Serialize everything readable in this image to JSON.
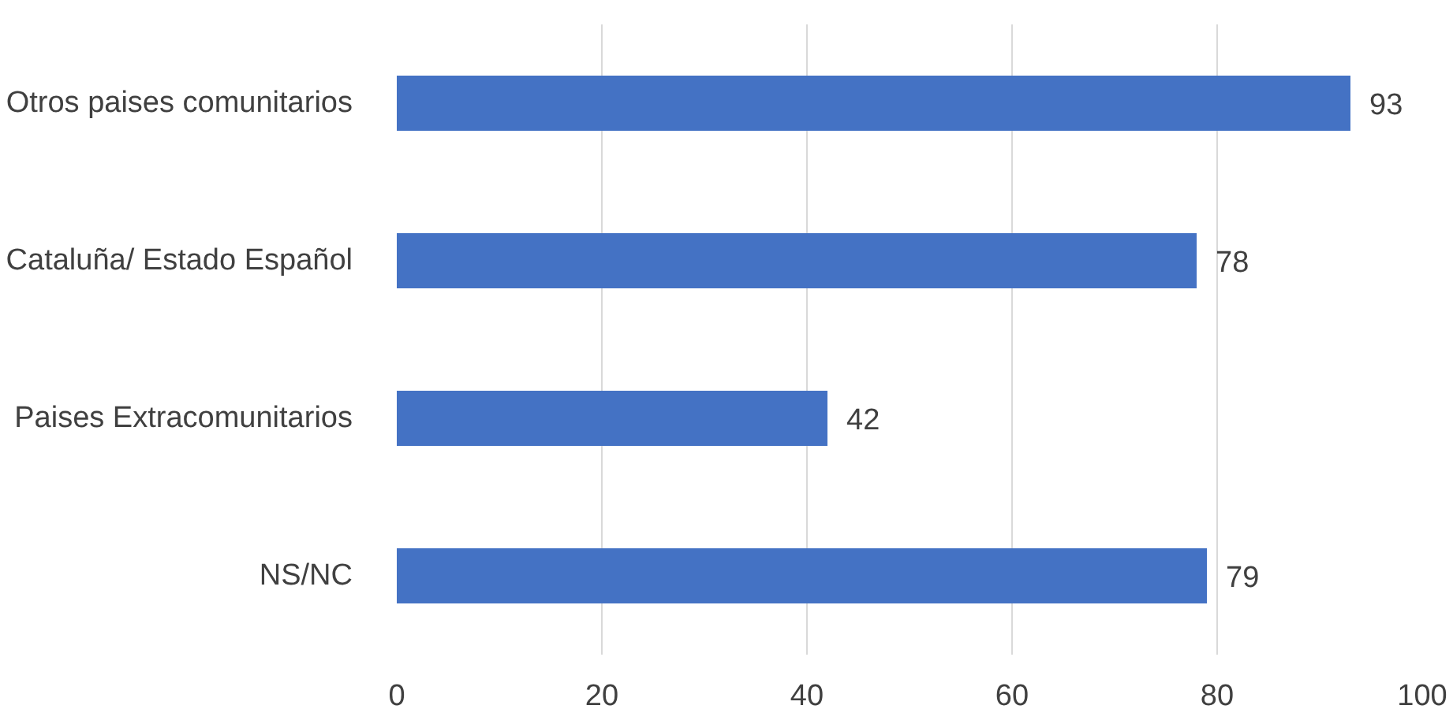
{
  "chart_data": {
    "type": "bar",
    "orientation": "horizontal",
    "categories": [
      "Otros paises comunitarios",
      "Cataluña/ Estado Español",
      "Paises Extracomunitarios",
      "NS/NC"
    ],
    "values": [
      93,
      78,
      42,
      79
    ],
    "color": "#4472c4",
    "xlim": [
      0,
      100
    ],
    "xticks": [
      0,
      20,
      40,
      60,
      80,
      100
    ],
    "grid": "x",
    "data_labels": true
  }
}
